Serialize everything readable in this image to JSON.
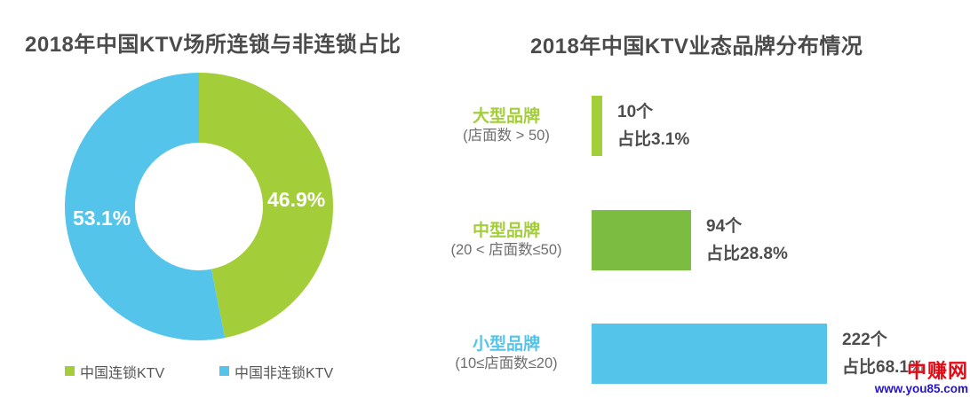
{
  "colors": {
    "green_light": "#A3CE3A",
    "green_medium": "#7CBC41",
    "blue": "#55C4EB",
    "text_dark": "#4B4B4B",
    "text_gray": "#6F6F6F",
    "watermark_red": "#E60813",
    "watermark_blue": "#2314CB"
  },
  "donut_chart": {
    "title": "2018年中国KTV场所连锁与非连锁占比",
    "slices": [
      {
        "label": "中国连锁KTV",
        "value": 46.9,
        "display": "46.9%",
        "color": "#A3CE3A"
      },
      {
        "label": "中国非连锁KTV",
        "value": 53.1,
        "display": "53.1%",
        "color": "#55C4EB"
      }
    ]
  },
  "bar_chart": {
    "title": "2018年中国KTV业态品牌分布情况",
    "rows": [
      {
        "label": "大型品牌",
        "sublabel": "(店面数 > 50)",
        "count": 10,
        "share_pct": 3.1,
        "count_label": "10个",
        "share_label": "占比3.1%",
        "bar_color": "#A3CE3A",
        "label_color": "#A3CE3A"
      },
      {
        "label": "中型品牌",
        "sublabel": "(20 < 店面数≤50)",
        "count": 94,
        "share_pct": 28.8,
        "count_label": "94个",
        "share_label": "占比28.8%",
        "bar_color": "#7CBC41",
        "label_color": "#A3CE3A"
      },
      {
        "label": "小型品牌",
        "sublabel": "(10≤店面数≤20)",
        "count": 222,
        "share_pct": 68.1,
        "count_label": "222个",
        "share_label": "占比68.1%",
        "bar_color": "#55C4EB",
        "label_color": "#55C4EB"
      }
    ]
  },
  "watermark": {
    "name": "中赚网",
    "url": "www.you85.com"
  },
  "chart_data": [
    {
      "type": "pie",
      "donut": true,
      "title": "2018年中国KTV场所连锁与非连锁占比",
      "labels": [
        "中国连锁KTV",
        "中国非连锁KTV"
      ],
      "values": [
        46.9,
        53.1
      ],
      "unit": "%",
      "colors": [
        "#A3CE3A",
        "#55C4EB"
      ],
      "start_angle_deg": 0,
      "direction": "clockwise",
      "legend_position": "bottom",
      "data_labels": [
        "46.9%",
        "53.1%"
      ]
    },
    {
      "type": "bar",
      "orientation": "horizontal",
      "title": "2018年中国KTV业态品牌分布情况",
      "categories": [
        "大型品牌 (店面数 > 50)",
        "中型品牌 (20 < 店面数≤50)",
        "小型品牌 (10≤店面数≤20)"
      ],
      "values": [
        10,
        94,
        222
      ],
      "share_pct": [
        3.1,
        28.8,
        68.1
      ],
      "value_labels": [
        [
          "10个",
          "占比3.1%"
        ],
        [
          "94个",
          "占比28.8%"
        ],
        [
          "222个",
          "占比68.1%"
        ]
      ],
      "colors": [
        "#A3CE3A",
        "#7CBC41",
        "#55C4EB"
      ],
      "grid": false,
      "axes_visible": false
    }
  ]
}
